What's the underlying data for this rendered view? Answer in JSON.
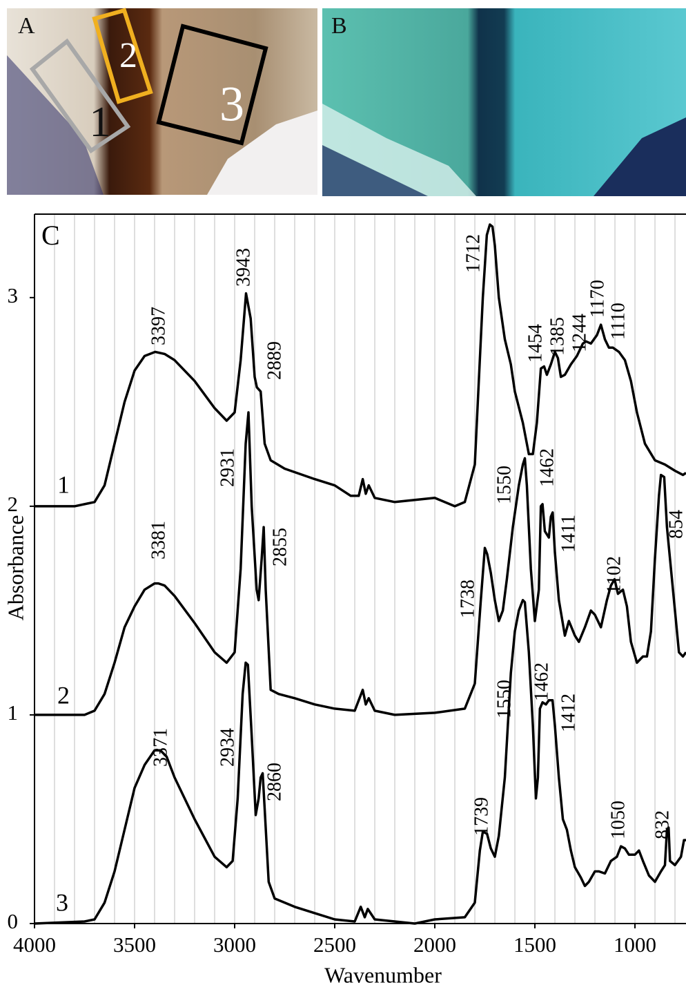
{
  "panels": {
    "a": {
      "label": "A",
      "regions": [
        "1",
        "2",
        "3"
      ]
    },
    "b": {
      "label": "B"
    }
  },
  "chart_data": {
    "type": "line",
    "panel_label": "C",
    "xlabel": "Wavenumber",
    "ylabel": "Absorbance",
    "xlim": [
      4000,
      745
    ],
    "ylim": [
      0,
      3.4
    ],
    "xticks": [
      4000,
      3500,
      3000,
      2500,
      2000,
      1500,
      1000
    ],
    "yticks": [
      0,
      1,
      2,
      3
    ],
    "xgrid": [
      3900,
      3800,
      3700,
      3600,
      3500,
      3400,
      3300,
      3200,
      3100,
      3000,
      2900,
      2800,
      2700,
      2600,
      2500,
      2400,
      2300,
      2200,
      2100,
      2000,
      1900,
      1800,
      1700,
      1600,
      1500,
      1400,
      1300,
      1200,
      1100,
      1000,
      900,
      800
    ],
    "series": [
      {
        "name": "1",
        "color": "#000000",
        "peak_labels": [
          "3397",
          "3943",
          "2889",
          "1712",
          "1454",
          "1385",
          "1244",
          "1170",
          "1110"
        ],
        "x": [
          4000,
          3800,
          3700,
          3650,
          3600,
          3550,
          3500,
          3450,
          3397,
          3350,
          3300,
          3200,
          3100,
          3040,
          3000,
          2970,
          2943,
          2920,
          2900,
          2889,
          2870,
          2850,
          2820,
          2750,
          2600,
          2500,
          2420,
          2380,
          2360,
          2345,
          2330,
          2300,
          2200,
          2100,
          2000,
          1900,
          1850,
          1800,
          1780,
          1760,
          1740,
          1725,
          1712,
          1700,
          1680,
          1650,
          1620,
          1600,
          1560,
          1530,
          1510,
          1490,
          1470,
          1454,
          1440,
          1420,
          1400,
          1385,
          1370,
          1350,
          1320,
          1290,
          1260,
          1244,
          1220,
          1190,
          1170,
          1150,
          1130,
          1110,
          1080,
          1050,
          1020,
          990,
          950,
          900,
          850,
          800,
          760,
          745
        ],
        "values": [
          2.0,
          2.0,
          2.02,
          2.1,
          2.3,
          2.5,
          2.65,
          2.72,
          2.74,
          2.73,
          2.7,
          2.6,
          2.47,
          2.41,
          2.45,
          2.7,
          3.02,
          2.9,
          2.62,
          2.57,
          2.55,
          2.3,
          2.22,
          2.18,
          2.13,
          2.1,
          2.05,
          2.05,
          2.13,
          2.06,
          2.1,
          2.04,
          2.02,
          2.03,
          2.04,
          2.0,
          2.02,
          2.2,
          2.6,
          3.0,
          3.3,
          3.35,
          3.34,
          3.25,
          3.0,
          2.8,
          2.68,
          2.55,
          2.4,
          2.25,
          2.25,
          2.4,
          2.66,
          2.67,
          2.63,
          2.68,
          2.74,
          2.71,
          2.62,
          2.63,
          2.68,
          2.72,
          2.78,
          2.79,
          2.78,
          2.82,
          2.87,
          2.8,
          2.76,
          2.76,
          2.74,
          2.7,
          2.6,
          2.45,
          2.3,
          2.22,
          2.2,
          2.17,
          2.15,
          2.16
        ]
      },
      {
        "name": "2",
        "color": "#000000",
        "peak_labels": [
          "2931",
          "2855",
          "3381",
          "1738",
          "1550",
          "1462",
          "1411",
          "1102",
          "854"
        ],
        "x": [
          4000,
          3750,
          3700,
          3650,
          3600,
          3550,
          3500,
          3450,
          3400,
          3381,
          3350,
          3300,
          3200,
          3100,
          3040,
          3000,
          2970,
          2945,
          2931,
          2915,
          2890,
          2880,
          2865,
          2855,
          2845,
          2820,
          2780,
          2700,
          2600,
          2500,
          2400,
          2360,
          2345,
          2330,
          2300,
          2200,
          2000,
          1850,
          1800,
          1770,
          1750,
          1738,
          1720,
          1700,
          1680,
          1660,
          1640,
          1610,
          1580,
          1560,
          1550,
          1540,
          1520,
          1500,
          1480,
          1470,
          1462,
          1450,
          1430,
          1420,
          1411,
          1400,
          1380,
          1350,
          1330,
          1300,
          1280,
          1250,
          1220,
          1200,
          1170,
          1140,
          1120,
          1102,
          1085,
          1060,
          1040,
          1020,
          990,
          960,
          940,
          920,
          900,
          880,
          870,
          854,
          840,
          810,
          780,
          760,
          745
        ],
        "values": [
          1.0,
          1.0,
          1.02,
          1.1,
          1.25,
          1.42,
          1.52,
          1.6,
          1.63,
          1.63,
          1.62,
          1.57,
          1.44,
          1.3,
          1.25,
          1.3,
          1.7,
          2.3,
          2.45,
          2.0,
          1.6,
          1.55,
          1.75,
          1.9,
          1.6,
          1.12,
          1.1,
          1.08,
          1.05,
          1.03,
          1.02,
          1.12,
          1.05,
          1.08,
          1.02,
          1.0,
          1.01,
          1.03,
          1.15,
          1.55,
          1.8,
          1.77,
          1.68,
          1.55,
          1.45,
          1.5,
          1.65,
          1.9,
          2.1,
          2.2,
          2.23,
          2.1,
          1.7,
          1.45,
          1.6,
          2.0,
          2.01,
          1.88,
          1.85,
          1.95,
          1.97,
          1.78,
          1.55,
          1.38,
          1.45,
          1.38,
          1.35,
          1.42,
          1.5,
          1.48,
          1.42,
          1.55,
          1.62,
          1.65,
          1.58,
          1.6,
          1.52,
          1.35,
          1.25,
          1.28,
          1.28,
          1.4,
          1.75,
          2.05,
          2.15,
          2.14,
          1.9,
          1.6,
          1.3,
          1.28,
          1.3
        ]
      },
      {
        "name": "3",
        "color": "#000000",
        "peak_labels": [
          "3371",
          "2934",
          "2860",
          "1739",
          "1550",
          "1462",
          "1412",
          "1050",
          "832"
        ],
        "x": [
          4000,
          3750,
          3700,
          3650,
          3600,
          3550,
          3500,
          3450,
          3400,
          3371,
          3340,
          3300,
          3200,
          3100,
          3040,
          3010,
          2985,
          2960,
          2945,
          2934,
          2915,
          2895,
          2880,
          2870,
          2860,
          2850,
          2830,
          2800,
          2700,
          2600,
          2500,
          2400,
          2370,
          2350,
          2335,
          2300,
          2100,
          2000,
          1850,
          1800,
          1775,
          1760,
          1739,
          1720,
          1700,
          1680,
          1650,
          1620,
          1600,
          1580,
          1560,
          1550,
          1530,
          1510,
          1495,
          1485,
          1475,
          1462,
          1445,
          1430,
          1412,
          1400,
          1380,
          1360,
          1340,
          1320,
          1300,
          1270,
          1250,
          1230,
          1200,
          1180,
          1150,
          1120,
          1090,
          1070,
          1050,
          1030,
          1000,
          980,
          960,
          930,
          900,
          870,
          850,
          840,
          832,
          825,
          800,
          770,
          755,
          745
        ],
        "values": [
          0.0,
          0.01,
          0.02,
          0.1,
          0.25,
          0.45,
          0.65,
          0.76,
          0.83,
          0.83,
          0.8,
          0.7,
          0.5,
          0.32,
          0.27,
          0.3,
          0.6,
          1.1,
          1.25,
          1.24,
          0.9,
          0.52,
          0.6,
          0.7,
          0.72,
          0.55,
          0.2,
          0.12,
          0.08,
          0.05,
          0.02,
          0.01,
          0.08,
          0.03,
          0.07,
          0.02,
          0.0,
          0.02,
          0.03,
          0.1,
          0.35,
          0.44,
          0.43,
          0.36,
          0.32,
          0.42,
          0.7,
          1.2,
          1.4,
          1.5,
          1.55,
          1.54,
          1.3,
          0.95,
          0.6,
          0.7,
          1.03,
          1.06,
          1.05,
          1.07,
          1.07,
          0.95,
          0.7,
          0.5,
          0.45,
          0.35,
          0.27,
          0.22,
          0.18,
          0.2,
          0.25,
          0.25,
          0.24,
          0.3,
          0.32,
          0.37,
          0.36,
          0.33,
          0.33,
          0.35,
          0.3,
          0.23,
          0.2,
          0.25,
          0.28,
          0.45,
          0.46,
          0.3,
          0.28,
          0.32,
          0.4,
          0.4
        ]
      }
    ]
  }
}
